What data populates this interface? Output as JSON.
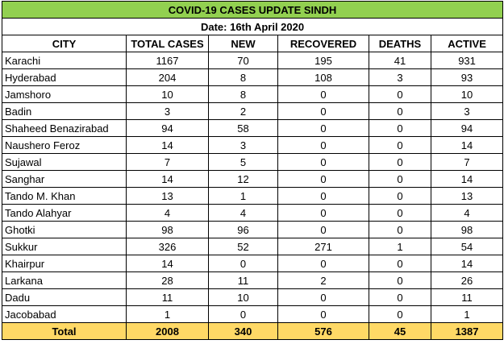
{
  "title": "COVID-19 CASES UPDATE SINDH",
  "date": "Date: 16th April 2020",
  "headers": [
    "CITY",
    "TOTAL CASES",
    "NEW",
    "RECOVERED",
    "DEATHS",
    "ACTIVE"
  ],
  "rows": [
    [
      "Karachi",
      "1167",
      "70",
      "195",
      "41",
      "931"
    ],
    [
      "Hyderabad",
      "204",
      "8",
      "108",
      "3",
      "93"
    ],
    [
      "Jamshoro",
      "10",
      "8",
      "0",
      "0",
      "10"
    ],
    [
      "Badin",
      "3",
      "2",
      "0",
      "0",
      "3"
    ],
    [
      "Shaheed Benazirabad",
      "94",
      "58",
      "0",
      "0",
      "94"
    ],
    [
      "Naushero Feroz",
      "14",
      "3",
      "0",
      "0",
      "14"
    ],
    [
      "Sujawal",
      "7",
      "5",
      "0",
      "0",
      "7"
    ],
    [
      "Sanghar",
      "14",
      "12",
      "0",
      "0",
      "14"
    ],
    [
      "Tando M. Khan",
      "13",
      "1",
      "0",
      "0",
      "13"
    ],
    [
      "Tando Alahyar",
      "4",
      "4",
      "0",
      "0",
      "4"
    ],
    [
      "Ghotki",
      "98",
      "96",
      "0",
      "0",
      "98"
    ],
    [
      "Sukkur",
      "326",
      "52",
      "271",
      "1",
      "54"
    ],
    [
      "Khairpur",
      "14",
      "0",
      "0",
      "0",
      "14"
    ],
    [
      "Larkana",
      "28",
      "11",
      "2",
      "0",
      "26"
    ],
    [
      "Dadu",
      "11",
      "10",
      "0",
      "0",
      "11"
    ],
    [
      "Jacobabad",
      "1",
      "0",
      "0",
      "0",
      "1"
    ]
  ],
  "total": [
    "Total",
    "2008",
    "340",
    "576",
    "45",
    "1387"
  ],
  "colors": {
    "title_bg": "#92d050",
    "total_bg": "#ffd966"
  }
}
